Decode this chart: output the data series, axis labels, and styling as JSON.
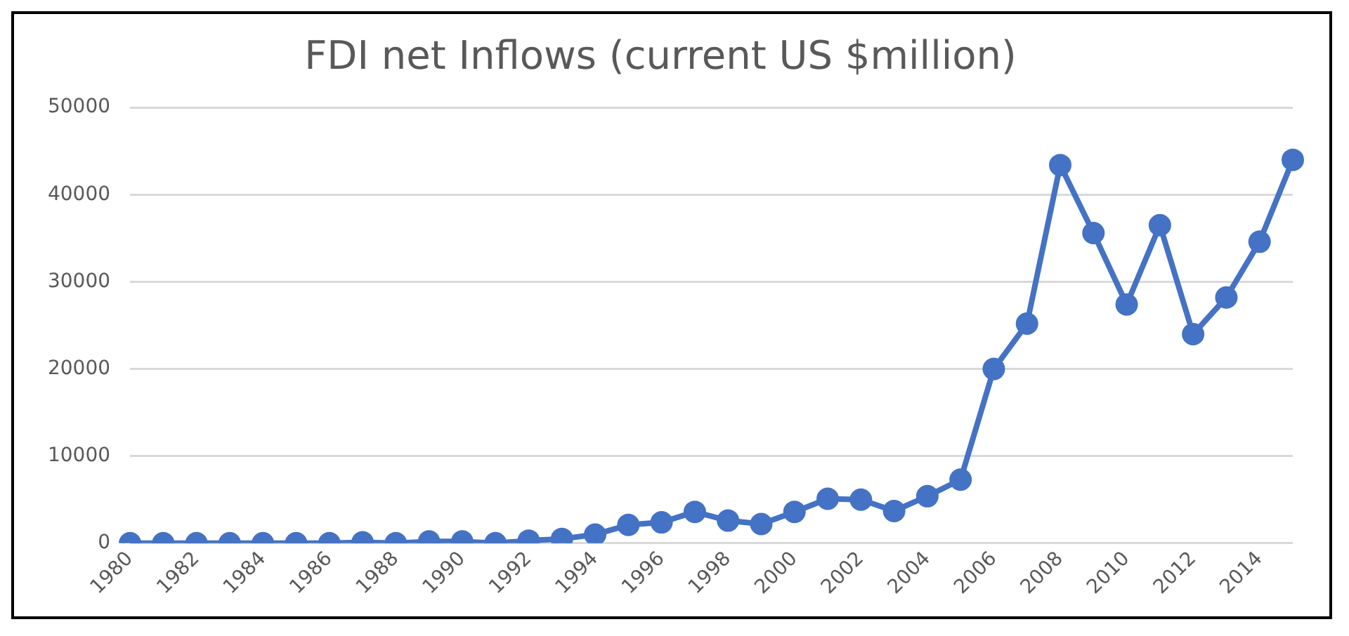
{
  "chart_data": {
    "type": "line",
    "title": "FDI net Inflows (current US $million)",
    "categories": [
      "1980",
      null,
      "1982",
      null,
      "1984",
      null,
      "1986",
      null,
      "1988",
      null,
      "1990",
      null,
      "1992",
      null,
      "1994",
      null,
      "1996",
      null,
      "1998",
      null,
      "2000",
      null,
      "2002",
      null,
      "2004",
      null,
      "2006",
      null,
      "2008",
      null,
      "2010",
      null,
      "2012",
      null,
      "2014",
      null
    ],
    "series": [
      {
        "color": "#4472c4",
        "values": [
          0,
          0,
          0,
          0,
          0,
          0,
          0,
          100,
          0,
          200,
          200,
          0,
          300,
          500,
          1000,
          2100,
          2400,
          3600,
          2600,
          2200,
          3600,
          5100,
          5000,
          3700,
          5400,
          7300,
          20000,
          25200,
          43400,
          35600,
          27400,
          36500,
          24000,
          28200,
          34600,
          44000
        ]
      }
    ],
    "ylim": [
      0,
      50000
    ],
    "yticks": [
      0,
      10000,
      20000,
      30000,
      40000,
      50000
    ],
    "grid": "y",
    "marker": "circle",
    "line_style": "solid",
    "legend": false
  }
}
